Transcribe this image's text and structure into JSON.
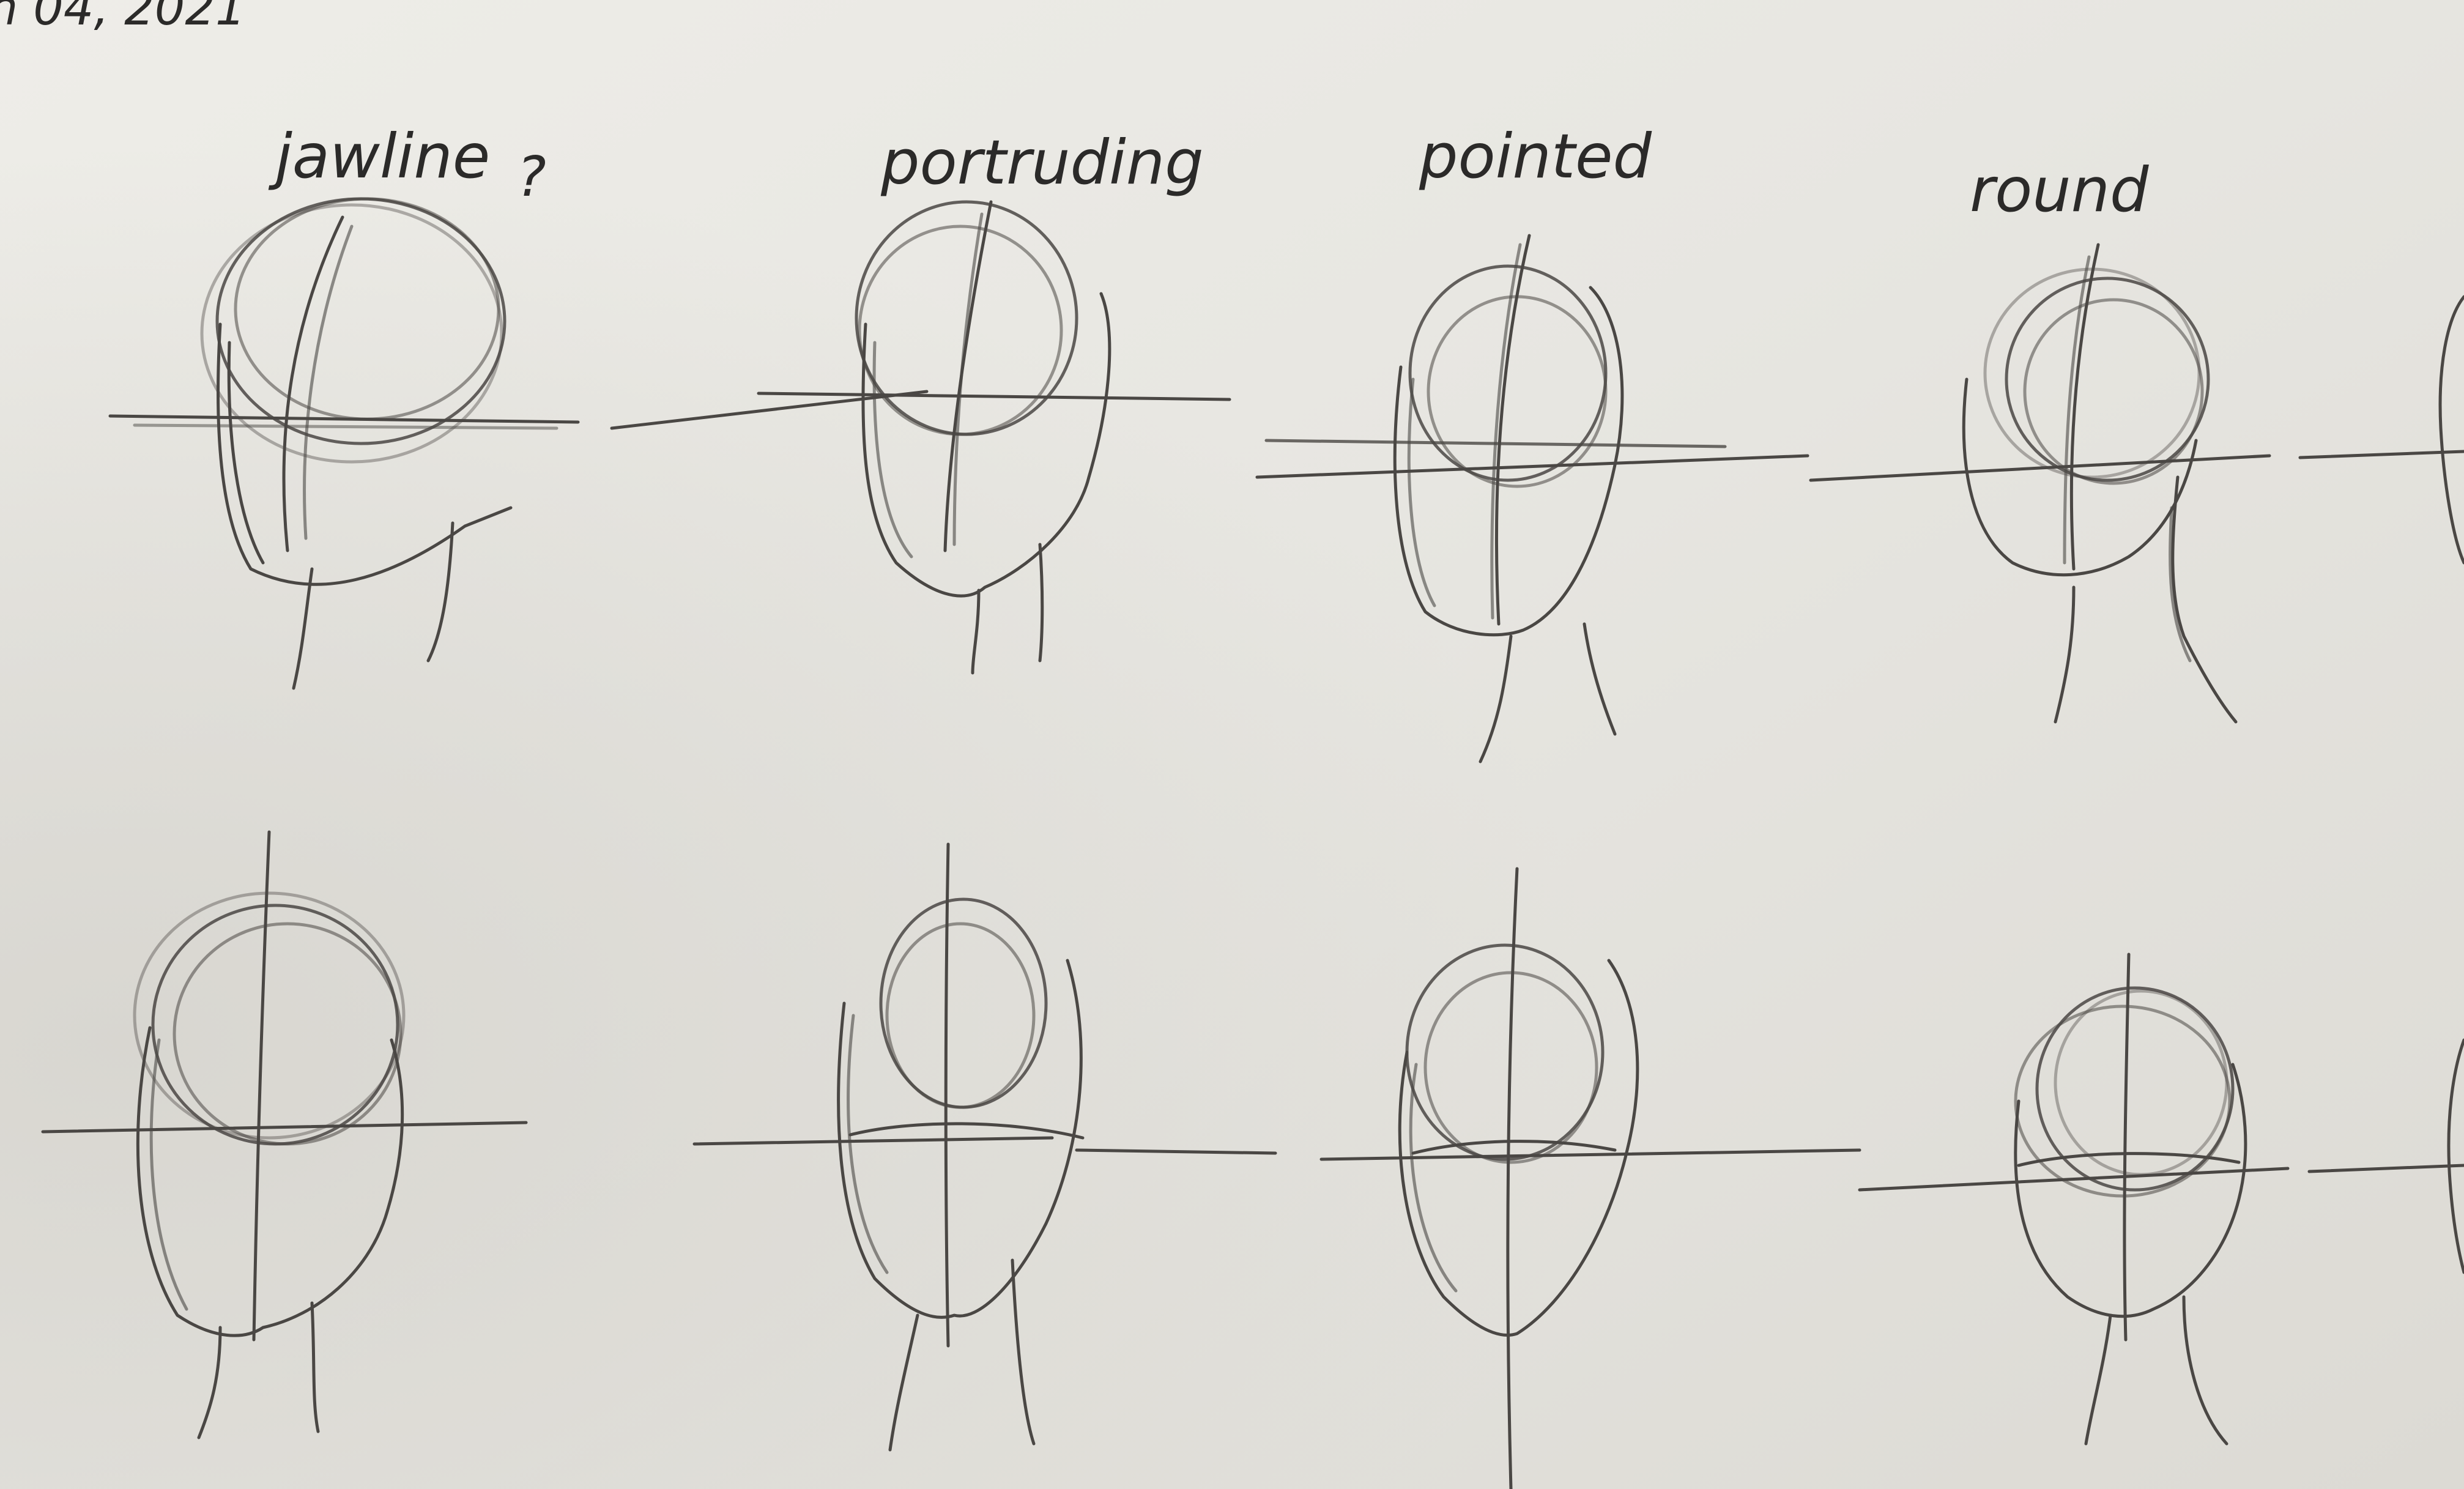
{
  "date_fragment": "n 04, 2021",
  "labels": [
    "jawline",
    "portruding",
    "pointed",
    "round"
  ],
  "question_mark": "?",
  "colors": {
    "paper": "#ecebe6",
    "graphite": "#4a4744",
    "ink": "#2b2a29"
  },
  "rows": 2,
  "heads_per_row": 4
}
